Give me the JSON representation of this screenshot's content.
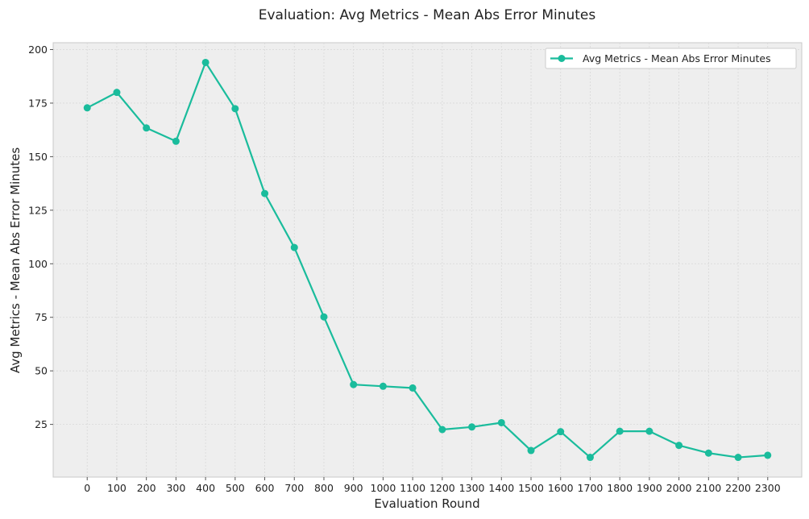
{
  "chart_data": {
    "type": "line",
    "title": "Evaluation: Avg Metrics - Mean Abs Error Minutes",
    "xlabel": "Evaluation Round",
    "ylabel": "Avg Metrics - Mean Abs Error Minutes",
    "x": [
      0,
      100,
      200,
      300,
      400,
      500,
      600,
      700,
      800,
      900,
      1000,
      1100,
      1200,
      1300,
      1400,
      1500,
      1600,
      1700,
      1800,
      1900,
      2000,
      2100,
      2200,
      2300
    ],
    "series": [
      {
        "name": "Avg Metrics - Mean Abs Error Minutes",
        "values": [
          172.8,
          180.0,
          163.4,
          157.2,
          194.0,
          172.4,
          132.8,
          107.6,
          75.2,
          43.6,
          42.8,
          42.0,
          22.6,
          23.8,
          25.8,
          12.8,
          21.6,
          9.6,
          21.8,
          21.8,
          15.2,
          11.6,
          9.6,
          10.6
        ],
        "color": "#1abc9c"
      }
    ],
    "xticks": [
      "0",
      "100",
      "200",
      "300",
      "400",
      "500",
      "600",
      "700",
      "800",
      "900",
      "1000",
      "1100",
      "1200",
      "1300",
      "1400",
      "1500",
      "1600",
      "1700",
      "1800",
      "1900",
      "2000",
      "2100",
      "2200",
      "2300"
    ],
    "yticks": [
      "25",
      "50",
      "75",
      "100",
      "125",
      "150",
      "175",
      "200"
    ],
    "xlim": [
      -115,
      2415
    ],
    "ylim": [
      0.4,
      203.2
    ],
    "grid": true,
    "legend_position": "top-right",
    "colors": {
      "plot_background": "#eeeeee",
      "grid": "#d8d8d8",
      "frame": "#c8c8c8"
    }
  }
}
